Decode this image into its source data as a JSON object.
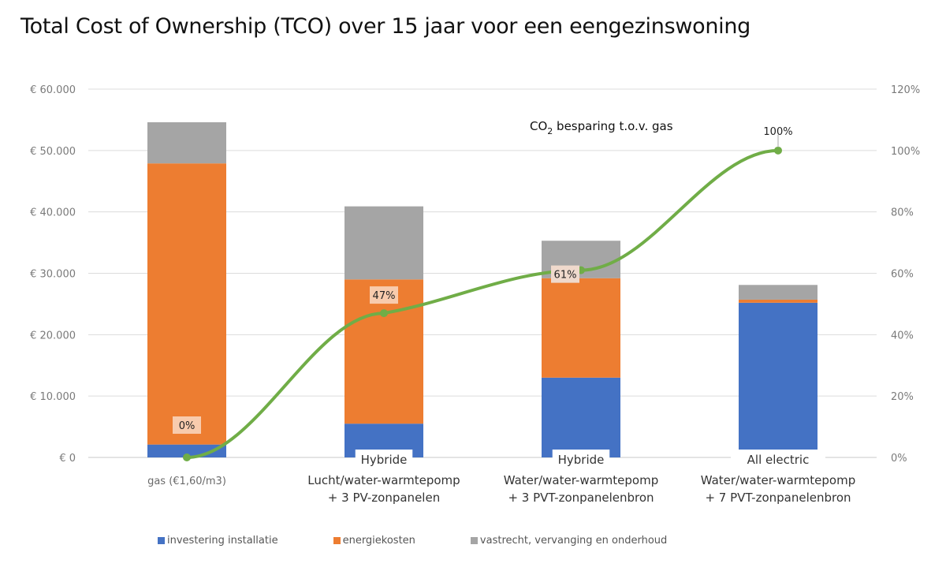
{
  "chart_data": {
    "type": "bar",
    "stacked": true,
    "title": "Total Cost of Ownership (TCO) over 15 jaar voor een eengezinswoning",
    "xlabel": "",
    "ylabel": "",
    "ylim": [
      0,
      60000
    ],
    "y2lim": [
      0,
      1.2
    ],
    "grid": true,
    "legend_position": "bottom",
    "y_ticks": [
      "€ 0",
      "€ 10.000",
      "€ 20.000",
      "€ 30.000",
      "€ 40.000",
      "€ 50.000",
      "€ 60.000"
    ],
    "y2_ticks": [
      "0%",
      "20%",
      "40%",
      "60%",
      "80%",
      "100%",
      "120%"
    ],
    "categories": [
      {
        "top": "",
        "lines": [
          "gas (€1,60/m3)"
        ]
      },
      {
        "top": "Hybride",
        "lines": [
          "Lucht/water-warmtepomp",
          "+ 3 PV-zonpanelen"
        ]
      },
      {
        "top": "Hybride",
        "lines": [
          "Water/water-warmtepomp",
          "+ 3 PVT-zonpanelenbron"
        ]
      },
      {
        "top": "All electric",
        "lines": [
          "Water/water-warmtepomp",
          "+ 7 PVT-zonpanelenbron"
        ]
      }
    ],
    "series": [
      {
        "name": "investering installatie",
        "color": "#4472C4",
        "values": [
          2100,
          5500,
          13000,
          25200
        ]
      },
      {
        "name": "energiekosten",
        "color": "#ED7D31",
        "values": [
          45800,
          23500,
          16200,
          500
        ]
      },
      {
        "name": "vastrecht, vervanging en onderhoud",
        "color": "#A5A5A5",
        "values": [
          6700,
          11900,
          6100,
          2400
        ]
      }
    ],
    "line_series": {
      "name": "CO2 besparing t.o.v. gas",
      "name_main": "CO",
      "name_sub": "2",
      "name_rest": " besparing t.o.v. gas",
      "color": "#70AD47",
      "axis": "secondary",
      "values": [
        0,
        0.47,
        0.61,
        1.0
      ],
      "labels": [
        "0%",
        "47%",
        "61%",
        "100%"
      ]
    }
  }
}
